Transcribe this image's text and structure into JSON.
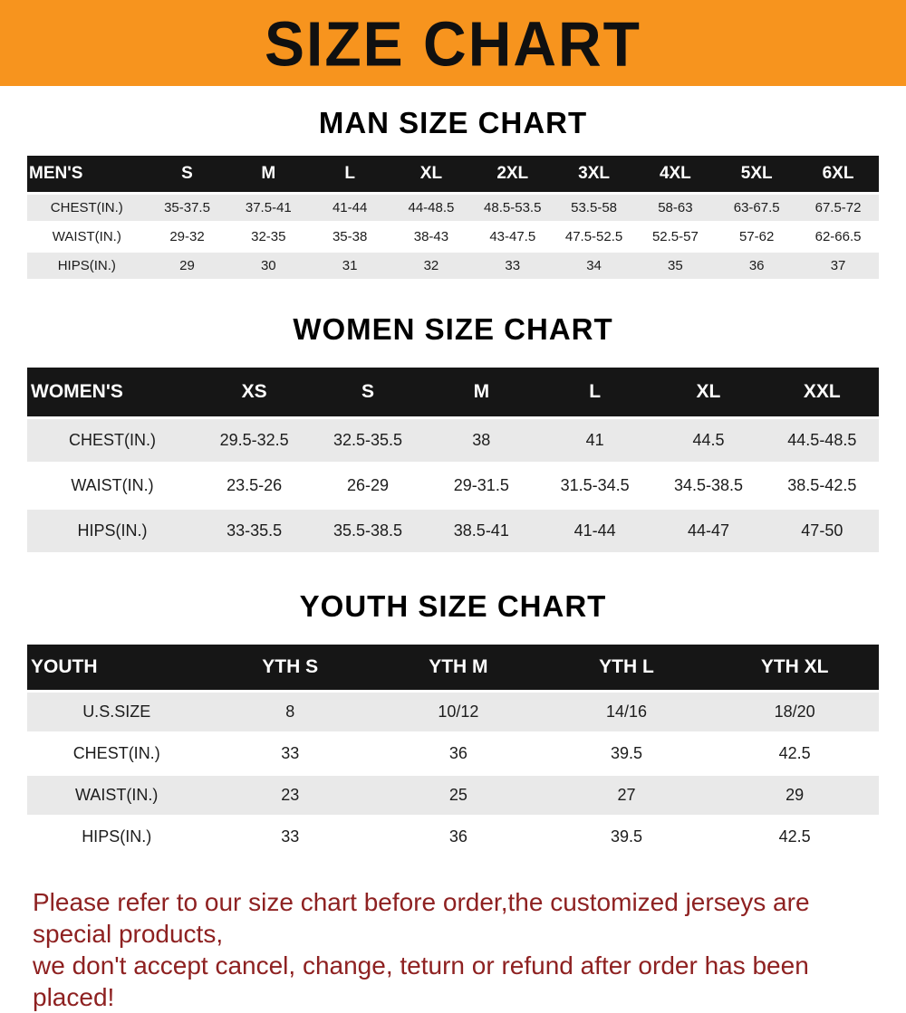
{
  "banner": {
    "title": "SIZE CHART"
  },
  "colors": {
    "banner_bg": "#F7941E",
    "header_bg": "#161616",
    "stripe_bg": "#e9e9e9",
    "footer_text": "#8e2121"
  },
  "chart_data": [
    {
      "type": "table",
      "title": "MAN SIZE CHART",
      "columns": [
        "MEN'S",
        "S",
        "M",
        "L",
        "XL",
        "2XL",
        "3XL",
        "4XL",
        "5XL",
        "6XL"
      ],
      "rows": [
        [
          "CHEST(IN.)",
          "35-37.5",
          "37.5-41",
          "41-44",
          "44-48.5",
          "48.5-53.5",
          "53.5-58",
          "58-63",
          "63-67.5",
          "67.5-72"
        ],
        [
          "WAIST(IN.)",
          "29-32",
          "32-35",
          "35-38",
          "38-43",
          "43-47.5",
          "47.5-52.5",
          "52.5-57",
          "57-62",
          "62-66.5"
        ],
        [
          "HIPS(IN.)",
          "29",
          "30",
          "31",
          "32",
          "33",
          "34",
          "35",
          "36",
          "37"
        ]
      ]
    },
    {
      "type": "table",
      "title": "WOMEN SIZE CHART",
      "columns": [
        "WOMEN'S",
        "XS",
        "S",
        "M",
        "L",
        "XL",
        "XXL"
      ],
      "rows": [
        [
          "CHEST(IN.)",
          "29.5-32.5",
          "32.5-35.5",
          "38",
          "41",
          "44.5",
          "44.5-48.5"
        ],
        [
          "WAIST(IN.)",
          "23.5-26",
          "26-29",
          "29-31.5",
          "31.5-34.5",
          "34.5-38.5",
          "38.5-42.5"
        ],
        [
          "HIPS(IN.)",
          "33-35.5",
          "35.5-38.5",
          "38.5-41",
          "41-44",
          "44-47",
          "47-50"
        ]
      ]
    },
    {
      "type": "table",
      "title": "YOUTH SIZE CHART",
      "columns": [
        "YOUTH",
        "YTH S",
        "YTH M",
        "YTH L",
        "YTH XL"
      ],
      "rows": [
        [
          "U.S.SIZE",
          "8",
          "10/12",
          "14/16",
          "18/20"
        ],
        [
          "CHEST(IN.)",
          "33",
          "36",
          "39.5",
          "42.5"
        ],
        [
          "WAIST(IN.)",
          "23",
          "25",
          "27",
          "29"
        ],
        [
          "HIPS(IN.)",
          "33",
          "36",
          "39.5",
          "42.5"
        ]
      ]
    }
  ],
  "footer": {
    "line1": "Please refer to our size chart before order,the customized jerseys are special products,",
    "line2": "we don't accept cancel, change, teturn or refund after order has been placed!"
  }
}
